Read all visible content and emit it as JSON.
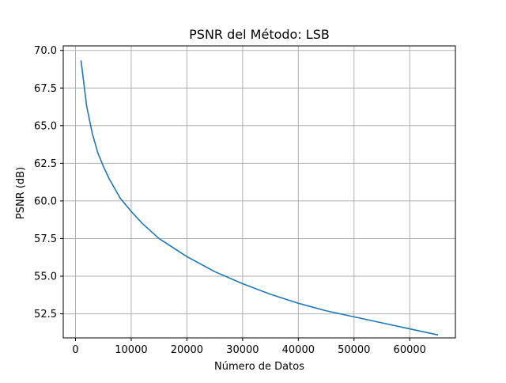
{
  "chart_data": {
    "type": "line",
    "title": "PSNR del Método: LSB",
    "xlabel": "Número de Datos",
    "ylabel": "PSNR (dB)",
    "xlim": [
      -2200,
      68200
    ],
    "ylim": [
      50.9,
      70.3
    ],
    "grid": true,
    "colors": {
      "line": "#1f77b4",
      "grid": "#b0b0b0",
      "axis": "#000000"
    },
    "x_ticks": [
      {
        "value": 0,
        "label": "0"
      },
      {
        "value": 10000,
        "label": "10000"
      },
      {
        "value": 20000,
        "label": "20000"
      },
      {
        "value": 30000,
        "label": "30000"
      },
      {
        "value": 40000,
        "label": "40000"
      },
      {
        "value": 50000,
        "label": "50000"
      },
      {
        "value": 60000,
        "label": "60000"
      }
    ],
    "y_ticks": [
      {
        "value": 52.5,
        "label": "52.5"
      },
      {
        "value": 55.0,
        "label": "55.0"
      },
      {
        "value": 57.5,
        "label": "57.5"
      },
      {
        "value": 60.0,
        "label": "60.0"
      },
      {
        "value": 62.5,
        "label": "62.5"
      },
      {
        "value": 65.0,
        "label": "65.0"
      },
      {
        "value": 67.5,
        "label": "67.5"
      },
      {
        "value": 70.0,
        "label": "70.0"
      }
    ],
    "series": [
      {
        "name": "",
        "x": [
          1000,
          2000,
          3000,
          4000,
          5000,
          6000,
          8000,
          10000,
          12000,
          15000,
          20000,
          25000,
          30000,
          35000,
          40000,
          45000,
          50000,
          55000,
          60000,
          65000
        ],
        "y": [
          69.3,
          66.3,
          64.5,
          63.2,
          62.3,
          61.5,
          60.2,
          59.3,
          58.5,
          57.5,
          56.3,
          55.3,
          54.5,
          53.8,
          53.2,
          52.7,
          52.3,
          51.9,
          51.5,
          51.1
        ]
      }
    ]
  }
}
